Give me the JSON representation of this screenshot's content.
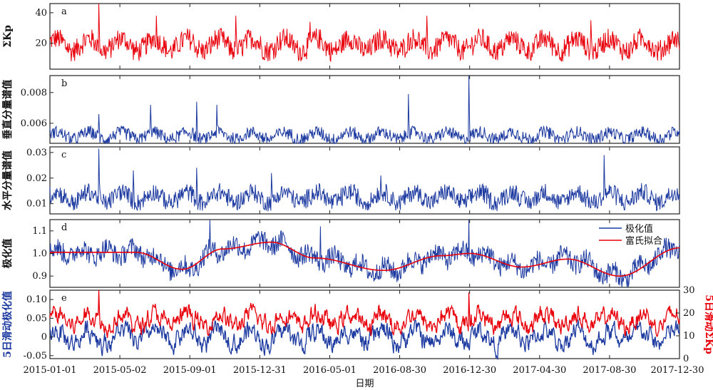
{
  "chart_data": {
    "type": "line",
    "xlabel": "日期",
    "date_ticks": [
      "2015-01-01",
      "2015-05-02",
      "2015-09-01",
      "2015-12-31",
      "2016-05-01",
      "2016-08-30",
      "2016-12-30",
      "2017-04-30",
      "2017-08-30",
      "2017-12-30"
    ],
    "n_days": 1095,
    "panels": [
      {
        "label": "a",
        "ylabel": "ΣKp",
        "ylim": [
          3,
          46
        ],
        "yticks": [
          20,
          40
        ],
        "color": "#e8000b",
        "series": {
          "name": "ΣKp",
          "base": 19,
          "amp": 7,
          "spikes": [
            [
              85,
              46
            ],
            [
              185,
              38
            ],
            [
              323,
              38
            ],
            [
              452,
              34
            ],
            [
              655,
              38
            ],
            [
              940,
              35
            ]
          ]
        }
      },
      {
        "label": "b",
        "ylabel": "垂直分量谱值",
        "ylim": [
          0.0047,
          0.0091
        ],
        "yticks": [
          "0.006",
          "0.008"
        ],
        "color": "#1d3aa0",
        "series": {
          "name": "垂直分量谱值",
          "base": 0.0052,
          "amp": 0.0004,
          "spikes": [
            [
              85,
              0.0066
            ],
            [
              175,
              0.0072
            ],
            [
              255,
              0.0074
            ],
            [
              290,
              0.0072
            ],
            [
              623,
              0.0079
            ],
            [
              728,
              0.0091
            ]
          ]
        }
      },
      {
        "label": "c",
        "ylabel": "水平分量谱值",
        "ylim": [
          0.006,
          0.0322
        ],
        "yticks": [
          "0.01",
          "0.02",
          "0.03"
        ],
        "color": "#1d3aa0",
        "series": {
          "name": "水平分量谱值",
          "base": 0.0125,
          "amp": 0.0035,
          "spikes": [
            [
              85,
              0.0315
            ],
            [
              145,
              0.023
            ],
            [
              255,
              0.024
            ],
            [
              385,
              0.022
            ],
            [
              575,
              0.021
            ],
            [
              963,
              0.029
            ]
          ]
        }
      },
      {
        "label": "d",
        "ylabel": "极化值",
        "ylim": [
          0.85,
          1.15
        ],
        "yticks": [
          "0.9",
          "1.0",
          "1.1"
        ],
        "color": "#1d3aa0",
        "legend": [
          {
            "label": "极化值",
            "color": "#1d3aa0"
          },
          {
            "label": "富氏拟合",
            "color": "#e8000b"
          }
        ],
        "fit_points": [
          [
            0,
            1.005
          ],
          [
            150,
            1.005
          ],
          [
            230,
            0.93
          ],
          [
            300,
            1.02
          ],
          [
            385,
            1.05
          ],
          [
            460,
            0.98
          ],
          [
            580,
            0.925
          ],
          [
            680,
            0.99
          ],
          [
            730,
            1.0
          ],
          [
            820,
            0.94
          ],
          [
            900,
            0.975
          ],
          [
            990,
            0.9
          ],
          [
            1095,
            1.025
          ]
        ],
        "series": {
          "name": "极化值",
          "amp": 0.045,
          "spikes": [
            [
              278,
              1.15
            ],
            [
              728,
              1.15
            ],
            [
              470,
              1.12
            ]
          ]
        }
      },
      {
        "label": "e",
        "ylabel": "5日滑动极化值",
        "ylabel_right": "5日滑动ΣKp",
        "ylim": [
          -0.058,
          0.125
        ],
        "yticks": [
          "-0.05",
          "0",
          "0.05",
          "0.10"
        ],
        "ylim_right": [
          0,
          30
        ],
        "yticks_right": [
          "0",
          "10",
          "20",
          "30"
        ],
        "color": "#1d3aa0",
        "color_right": "#e8000b",
        "series": [
          {
            "name": "5日滑动极化值",
            "base": 0.0,
            "amp": 0.03
          },
          {
            "name": "5日滑动ΣKp",
            "base": 17,
            "amp": 4.5
          }
        ]
      }
    ]
  }
}
